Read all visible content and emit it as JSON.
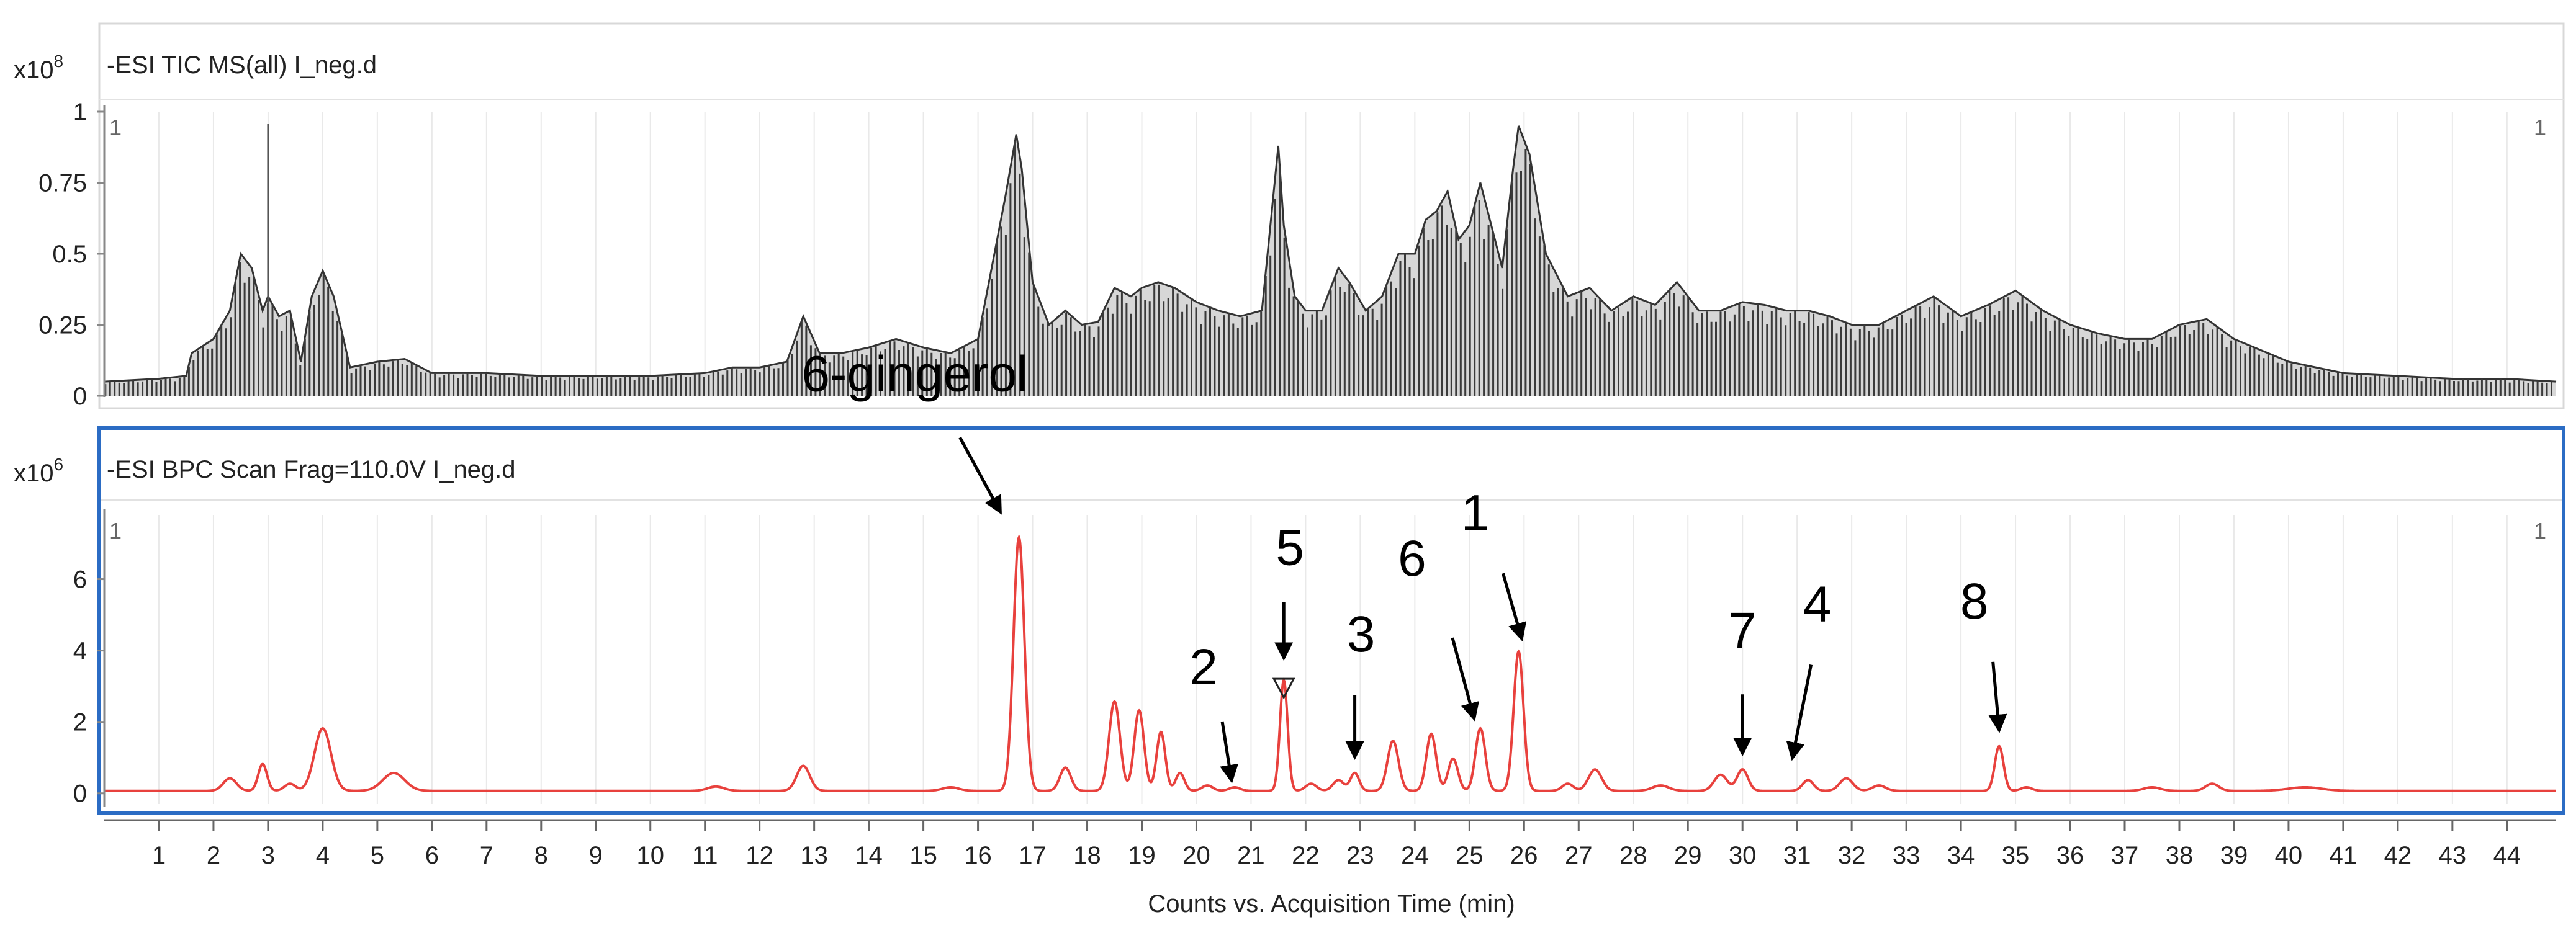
{
  "chart_data": [
    {
      "type": "line",
      "title": "-ESI TIC MS(all) I_neg.d",
      "scale_label": "x10",
      "scale_exp": "8",
      "xlim": [
        0,
        44.9
      ],
      "ylim": [
        0,
        1.0
      ],
      "yticks": [
        "0",
        "0.25",
        "0.5",
        "0.75",
        "1"
      ],
      "ytick_values": [
        0,
        0.25,
        0.5,
        0.75,
        1
      ],
      "marker_left": "1",
      "marker_right": "1",
      "series_color": "#333333",
      "series": [
        {
          "x": [
            0.0,
            1.0,
            1.5,
            1.6,
            2.0,
            2.3,
            2.5,
            2.7,
            2.9,
            3.0,
            3.2,
            3.4,
            3.6,
            3.8,
            4.0,
            4.2,
            4.5,
            5.0,
            5.5,
            6.0,
            7.0,
            8.0,
            9.0,
            10.0,
            11.0,
            11.5,
            12.0,
            12.5,
            12.8,
            13.1,
            13.5,
            14.0,
            14.5,
            15.0,
            15.5,
            16.0,
            16.3,
            16.5,
            16.7,
            16.8,
            17.0,
            17.3,
            17.6,
            17.9,
            18.2,
            18.5,
            18.8,
            19.0,
            19.3,
            19.6,
            20.0,
            20.4,
            20.8,
            21.2,
            21.5,
            21.6,
            21.8,
            22.0,
            22.3,
            22.6,
            22.8,
            23.1,
            23.4,
            23.7,
            24.0,
            24.2,
            24.4,
            24.6,
            24.8,
            25.0,
            25.2,
            25.4,
            25.6,
            25.8,
            25.9,
            26.1,
            26.4,
            26.8,
            27.2,
            27.6,
            28.0,
            28.4,
            28.8,
            29.2,
            29.6,
            30.0,
            30.4,
            30.8,
            31.2,
            31.6,
            32.0,
            32.5,
            33.0,
            33.5,
            34.0,
            34.5,
            35.0,
            35.5,
            36.0,
            36.5,
            37.0,
            37.5,
            38.0,
            38.5,
            39.0,
            40.0,
            41.0,
            42.0,
            43.0,
            44.0,
            44.9
          ],
          "y": [
            0.05,
            0.06,
            0.07,
            0.15,
            0.2,
            0.3,
            0.5,
            0.45,
            0.3,
            0.35,
            0.28,
            0.3,
            0.12,
            0.35,
            0.44,
            0.35,
            0.1,
            0.12,
            0.13,
            0.08,
            0.08,
            0.07,
            0.07,
            0.07,
            0.08,
            0.1,
            0.1,
            0.12,
            0.28,
            0.15,
            0.15,
            0.17,
            0.2,
            0.17,
            0.15,
            0.2,
            0.5,
            0.7,
            0.92,
            0.8,
            0.4,
            0.25,
            0.3,
            0.25,
            0.26,
            0.38,
            0.35,
            0.38,
            0.4,
            0.38,
            0.33,
            0.3,
            0.28,
            0.3,
            0.88,
            0.6,
            0.35,
            0.3,
            0.3,
            0.45,
            0.4,
            0.3,
            0.35,
            0.5,
            0.5,
            0.62,
            0.65,
            0.72,
            0.55,
            0.6,
            0.75,
            0.6,
            0.45,
            0.8,
            0.95,
            0.85,
            0.5,
            0.35,
            0.38,
            0.3,
            0.35,
            0.32,
            0.4,
            0.3,
            0.3,
            0.33,
            0.32,
            0.3,
            0.3,
            0.28,
            0.25,
            0.25,
            0.3,
            0.35,
            0.28,
            0.32,
            0.37,
            0.3,
            0.25,
            0.22,
            0.2,
            0.2,
            0.25,
            0.27,
            0.2,
            0.12,
            0.08,
            0.07,
            0.06,
            0.06,
            0.05
          ]
        }
      ]
    },
    {
      "type": "line",
      "title": "-ESI BPC Scan Frag=110.0V I_neg.d",
      "scale_label": "x10",
      "scale_exp": "6",
      "xlim": [
        0,
        44.9
      ],
      "ylim": [
        -0.3,
        7.8
      ],
      "yticks": [
        "0",
        "2",
        "4",
        "6"
      ],
      "ytick_values": [
        0,
        2,
        4,
        6
      ],
      "marker_left": "1",
      "marker_right": "1",
      "series_color": "#e8413d",
      "xlabel": "Counts vs. Acquisition Time (min)",
      "xticks": [
        "1",
        "2",
        "3",
        "4",
        "5",
        "6",
        "7",
        "8",
        "9",
        "10",
        "11",
        "12",
        "13",
        "14",
        "15",
        "16",
        "17",
        "18",
        "19",
        "20",
        "21",
        "22",
        "23",
        "24",
        "25",
        "26",
        "27",
        "28",
        "29",
        "30",
        "31",
        "32",
        "33",
        "34",
        "35",
        "36",
        "37",
        "38",
        "39",
        "40",
        "41",
        "42",
        "43",
        "44"
      ],
      "peaks": [
        {
          "x": 2.3,
          "h": 0.35,
          "w": 0.12
        },
        {
          "x": 2.9,
          "h": 0.75,
          "w": 0.08
        },
        {
          "x": 3.4,
          "h": 0.2,
          "w": 0.1
        },
        {
          "x": 4.0,
          "h": 1.75,
          "w": 0.15
        },
        {
          "x": 5.3,
          "h": 0.5,
          "w": 0.2
        },
        {
          "x": 11.2,
          "h": 0.12,
          "w": 0.15
        },
        {
          "x": 12.8,
          "h": 0.7,
          "w": 0.12
        },
        {
          "x": 15.5,
          "h": 0.1,
          "w": 0.15
        },
        {
          "x": 16.75,
          "h": 7.1,
          "w": 0.1
        },
        {
          "x": 17.6,
          "h": 0.65,
          "w": 0.1
        },
        {
          "x": 18.5,
          "h": 2.5,
          "w": 0.1
        },
        {
          "x": 18.95,
          "h": 2.25,
          "w": 0.09
        },
        {
          "x": 19.35,
          "h": 1.65,
          "w": 0.08
        },
        {
          "x": 19.7,
          "h": 0.5,
          "w": 0.08
        },
        {
          "x": 20.2,
          "h": 0.15,
          "w": 0.1
        },
        {
          "x": 20.7,
          "h": 0.1,
          "w": 0.1
        },
        {
          "x": 21.6,
          "h": 3.1,
          "w": 0.07
        },
        {
          "x": 22.1,
          "h": 0.2,
          "w": 0.1
        },
        {
          "x": 22.6,
          "h": 0.3,
          "w": 0.1
        },
        {
          "x": 22.9,
          "h": 0.5,
          "w": 0.08
        },
        {
          "x": 23.6,
          "h": 1.4,
          "w": 0.1
        },
        {
          "x": 24.3,
          "h": 1.6,
          "w": 0.09
        },
        {
          "x": 24.7,
          "h": 0.9,
          "w": 0.09
        },
        {
          "x": 25.2,
          "h": 1.75,
          "w": 0.09
        },
        {
          "x": 25.9,
          "h": 3.9,
          "w": 0.09
        },
        {
          "x": 26.8,
          "h": 0.2,
          "w": 0.1
        },
        {
          "x": 27.3,
          "h": 0.6,
          "w": 0.12
        },
        {
          "x": 28.5,
          "h": 0.15,
          "w": 0.15
        },
        {
          "x": 29.6,
          "h": 0.45,
          "w": 0.12
        },
        {
          "x": 30.0,
          "h": 0.6,
          "w": 0.1
        },
        {
          "x": 31.2,
          "h": 0.3,
          "w": 0.1
        },
        {
          "x": 31.9,
          "h": 0.35,
          "w": 0.12
        },
        {
          "x": 32.5,
          "h": 0.15,
          "w": 0.12
        },
        {
          "x": 34.7,
          "h": 1.25,
          "w": 0.08
        },
        {
          "x": 35.2,
          "h": 0.1,
          "w": 0.1
        },
        {
          "x": 37.5,
          "h": 0.1,
          "w": 0.15
        },
        {
          "x": 38.6,
          "h": 0.2,
          "w": 0.12
        },
        {
          "x": 40.3,
          "h": 0.1,
          "w": 0.3
        }
      ],
      "baseline": 0.07,
      "annotations": [
        {
          "text": "6-gingerol",
          "x": 16.75,
          "y": 7.1
        },
        {
          "text": "5",
          "x": 21.6,
          "y": 3.1
        },
        {
          "text": "2",
          "x": 20.7,
          "y": 0.1
        },
        {
          "text": "3",
          "x": 22.9,
          "y": 0.5
        },
        {
          "text": "6",
          "x": 25.2,
          "y": 1.75
        },
        {
          "text": "1",
          "x": 25.9,
          "y": 3.9
        },
        {
          "text": "7",
          "x": 30.0,
          "y": 0.6
        },
        {
          "text": "4",
          "x": 30.8,
          "y": 0.3
        },
        {
          "text": "8",
          "x": 34.7,
          "y": 1.25
        }
      ],
      "triangle_marker_x": 21.6
    }
  ]
}
